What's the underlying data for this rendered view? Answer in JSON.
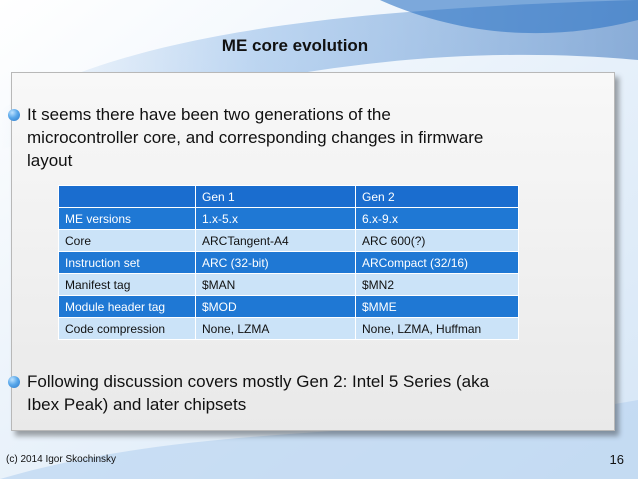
{
  "slide": {
    "title": "ME core evolution",
    "bullets": [
      "It seems there have been two generations of the microcontroller core, and corresponding changes in firmware layout",
      "Following discussion covers mostly Gen 2: Intel 5 Series (aka Ibex Peak) and later chipsets"
    ],
    "table": {
      "headers": [
        "",
        "Gen 1",
        "Gen 2"
      ],
      "rows": [
        [
          "ME versions",
          "1.x-5.x",
          "6.x-9.x"
        ],
        [
          "Core",
          "ARCTangent-A4",
          "ARC 600(?)"
        ],
        [
          "Instruction set",
          "ARC (32-bit)",
          "ARCompact (32/16)"
        ],
        [
          "Manifest tag",
          "$MAN",
          "$MN2"
        ],
        [
          "Module header tag",
          "$MOD",
          "$MME"
        ],
        [
          "Code compression",
          "None, LZMA",
          "None, LZMA, Huffman"
        ]
      ]
    },
    "footer": {
      "copyright": "(c) 2014 Igor Skochinsky",
      "page_number": "16"
    }
  },
  "colors": {
    "table_header": "#1a6dcf",
    "table_row_dark": "#1f78d4",
    "table_row_light": "#cbe3f8",
    "bullet_dot": "#2b78c8"
  },
  "icons": {
    "bullet": "blue-sphere-bullet-icon"
  }
}
